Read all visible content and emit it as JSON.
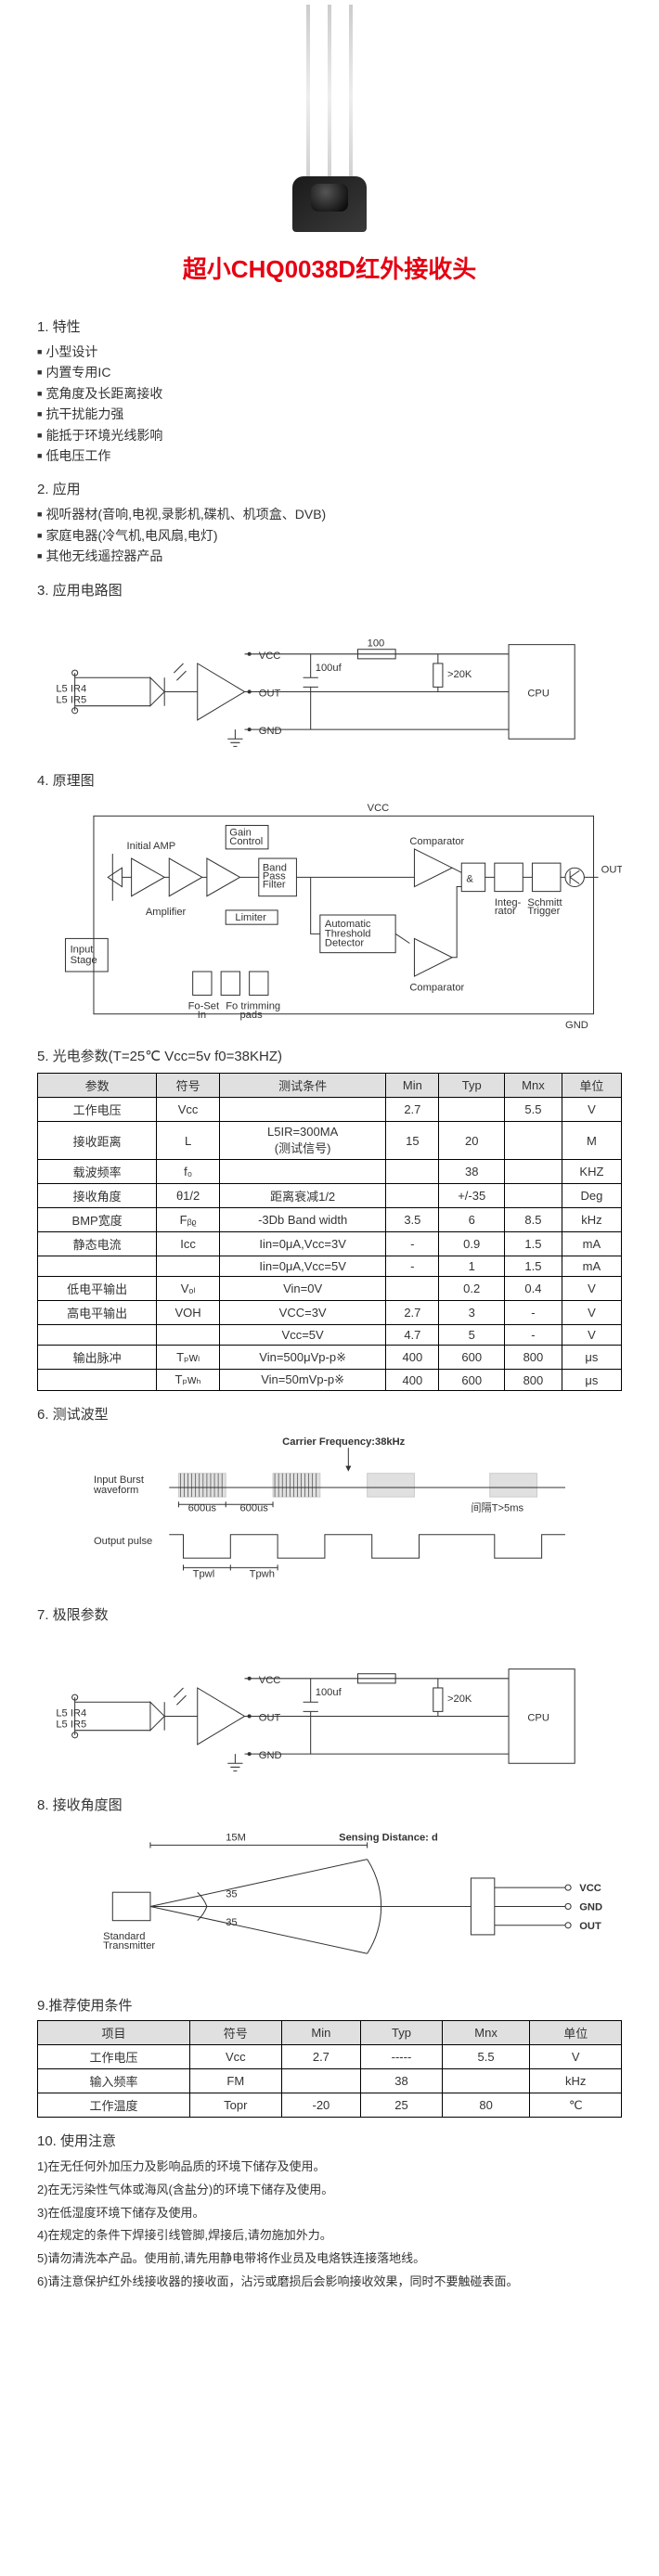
{
  "title": "超小CHQ0038D红外接收头",
  "section1": {
    "heading": "1. 特性",
    "items": [
      "小型设计",
      "内置专用IC",
      "宽角度及长距离接收",
      "抗干扰能力强",
      "能抵于环境光线影响",
      "低电压工作"
    ]
  },
  "section2": {
    "heading": "2. 应用",
    "items": [
      "视听器材(音响,电视,录影机,碟机、机项盒、DVB)",
      "家庭电器(冷气机,电风扇,电灯)",
      "其他无线遥控器产品"
    ]
  },
  "section3": {
    "heading": "3. 应用电路图"
  },
  "circuit": {
    "labels": {
      "vcc": "VCC",
      "out": "OUT",
      "gnd": "GND",
      "cap": "100uf",
      "res": "100",
      "rpull": ">20K",
      "cpu": "CPU",
      "leds": "L5 IR4\nL5 IR5"
    }
  },
  "section4": {
    "heading": "4. 原理图"
  },
  "block": {
    "vcc": "VCC",
    "gnd": "GND",
    "out": "OUT",
    "input_stage": "Input\nStage",
    "initial_amp": "Initial AMP",
    "amplifier": "Amplifier",
    "gain": "Gain\nControl",
    "bpf": "Band\nPass\nFilter",
    "limiter": "Limiter",
    "atd": "Automatic\nThreshold\nDetector",
    "comp": "Comparator",
    "comp2": "Comparator",
    "integ": "Integ-\nrator",
    "schmitt": "Schmitt\nTrigger",
    "foset": "Fo-Set\nIn",
    "fotrim": "Fo trimming\npads"
  },
  "section5": {
    "heading": "5. 光电参数(T=25℃  Vcc=5v  f0=38KHZ)"
  },
  "table5": {
    "headers": [
      "参数",
      "符号",
      "测试条件",
      "Min",
      "Typ",
      "Mnx",
      "单位"
    ],
    "rows": [
      [
        "工作电压",
        "Vcc",
        "",
        "2.7",
        "",
        "5.5",
        "V"
      ],
      [
        "接收距离",
        "L",
        "L5IR=300MA\n(测试信号)",
        "15",
        "20",
        "",
        "M"
      ],
      [
        "载波频率",
        "f₀",
        "",
        "",
        "38",
        "",
        "KHZ"
      ],
      [
        "接收角度",
        "θ1/2",
        "距离衰减1/2",
        "",
        "+/-35",
        "",
        "Deg"
      ],
      [
        "BMP宽度",
        "Fᵦᵨ",
        "-3Db Band width",
        "3.5",
        "6",
        "8.5",
        "kHz"
      ],
      [
        "静态电流",
        "Icc",
        "Iin=0μA,Vcc=3V",
        "-",
        "0.9",
        "1.5",
        "mA"
      ],
      [
        "",
        "",
        "Iin=0μA,Vcc=5V",
        "-",
        "1",
        "1.5",
        "mA"
      ],
      [
        "低电平输出",
        "Vₒₗ",
        "Vin=0V",
        "",
        "0.2",
        "0.4",
        "V"
      ],
      [
        "高电平输出",
        "VOH",
        "VCC=3V",
        "2.7",
        "3",
        "-",
        "V"
      ],
      [
        "",
        "",
        "Vcc=5V",
        "4.7",
        "5",
        "-",
        "V"
      ],
      [
        "输出脉冲",
        "Tₚwₗ",
        "Vin=500μVp-p※",
        "400",
        "600",
        "800",
        "μs"
      ],
      [
        "",
        "Tₚwₕ",
        "Vin=50mVp-p※",
        "400",
        "600",
        "800",
        "μs"
      ]
    ]
  },
  "section6": {
    "heading": "6. 测试波型"
  },
  "waveform": {
    "carrier": "Carrier Frequency:38kHz",
    "input_label": "Input Burst\nwaveform",
    "output_label": "Output pulse",
    "t1": "600us",
    "t2": "600us",
    "interval": "间隔T>5ms",
    "tpwl": "Tpwl",
    "tpwh": "Tpwh"
  },
  "section7": {
    "heading": "7. 极限参数"
  },
  "section8": {
    "heading": "8. 接收角度图"
  },
  "angle": {
    "dist": "15M",
    "sensing": "Sensing Distance: d",
    "ang": "35",
    "tx": "Standard\nTransmitter",
    "vcc": "VCC",
    "gnd": "GND",
    "out": "OUT"
  },
  "section9": {
    "heading": "9.推荐使用条件"
  },
  "table9": {
    "headers": [
      "项目",
      "符号",
      "Min",
      "Typ",
      "Mnx",
      "单位"
    ],
    "rows": [
      [
        "工作电压",
        "Vcc",
        "2.7",
        "-----",
        "5.5",
        "V"
      ],
      [
        "输入频率",
        "FM",
        "",
        "38",
        "",
        "kHz"
      ],
      [
        "工作温度",
        "Topr",
        "-20",
        "25",
        "80",
        "℃"
      ]
    ]
  },
  "section10": {
    "heading": "10. 使用注意"
  },
  "notes": [
    "1)在无任何外加压力及影响品质的环境下储存及使用。",
    "2)在无污染性气体或海风(含盐分)的环境下储存及使用。",
    "3)在低湿度环境下储存及使用。",
    "4)在规定的条件下焊接引线管脚,焊接后,请勿施加外力。",
    "5)请勿清洗本产品。使用前,请先用静电带将作业员及电烙铁连接落地线。",
    "6)请注意保护红外线接收器的接收面，沾污或磨损后会影响接收效果，同时不要触碰表面。"
  ],
  "colors": {
    "title": "#e60012",
    "text": "#333333",
    "border": "#000000",
    "th_bg": "#e0e0e0",
    "bg": "#ffffff"
  }
}
